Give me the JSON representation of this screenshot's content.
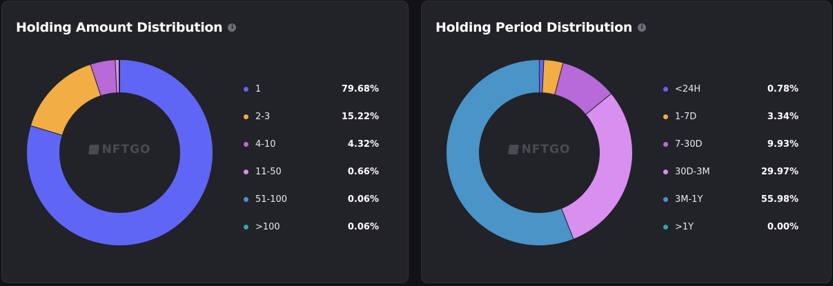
{
  "chart_data": [
    {
      "type": "pie",
      "title": "Holding Amount Distribution",
      "watermark": "NFTGO",
      "categories": [
        "1",
        "2-3",
        "4-10",
        "11-50",
        "51-100",
        ">100"
      ],
      "values": [
        79.68,
        15.22,
        4.32,
        0.66,
        0.06,
        0.06
      ],
      "value_labels": [
        "79.68%",
        "15.22%",
        "4.32%",
        "0.66%",
        "0.06%",
        "0.06%"
      ],
      "colors": [
        "#5f66f6",
        "#f2ad44",
        "#b86ad9",
        "#d88ff0",
        "#4a94c7",
        "#3aa3a8"
      ],
      "legend": "right"
    },
    {
      "type": "pie",
      "title": "Holding Period Distribution",
      "watermark": "NFTGO",
      "categories": [
        "<24H",
        "1-7D",
        "7-30D",
        "30D-3M",
        "3M-1Y",
        ">1Y"
      ],
      "values": [
        0.78,
        3.34,
        9.93,
        29.97,
        55.98,
        0.0
      ],
      "value_labels": [
        "0.78%",
        "3.34%",
        "9.93%",
        "29.97%",
        "55.98%",
        "0.00%"
      ],
      "colors": [
        "#5f66f6",
        "#f2ad44",
        "#b86ad9",
        "#d88ff0",
        "#4a94c7",
        "#3aa3a8"
      ],
      "legend": "right"
    }
  ],
  "icons": {
    "info": "info-icon",
    "watermark": "nftgo-logo-icon"
  }
}
